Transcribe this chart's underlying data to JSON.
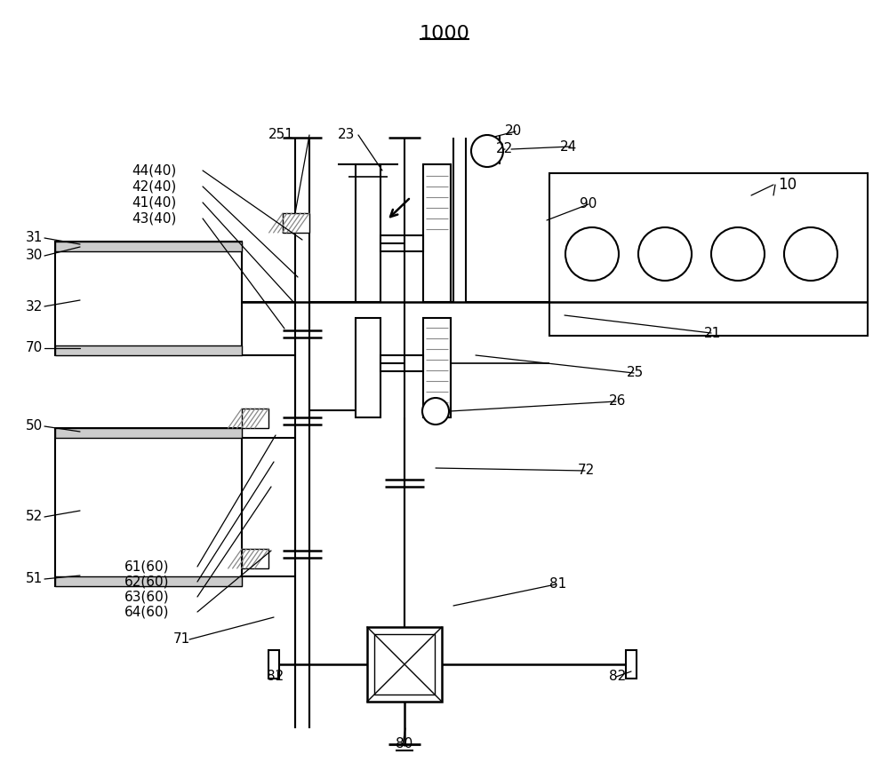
{
  "bg_color": "#ffffff",
  "line_color": "#000000",
  "gray_color": "#888888",
  "title": "1000",
  "figsize": [
    10.0,
    8.76
  ],
  "dpi": 100
}
